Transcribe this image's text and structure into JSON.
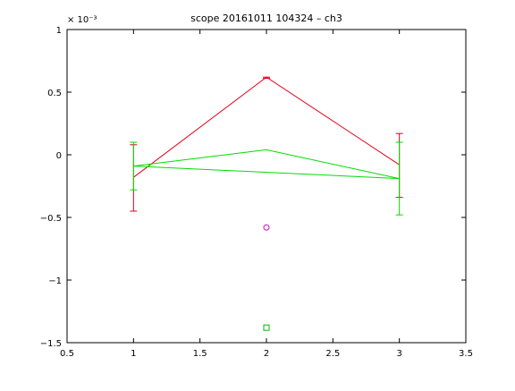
{
  "chart_data": {
    "type": "line",
    "title": "scope 20161011 104324 – ch3",
    "xlabel": "",
    "ylabel": "",
    "xlim": [
      0.5,
      3.5
    ],
    "ylim": [
      -1.5,
      1
    ],
    "y_scale_label": "× 10⁻³",
    "x_ticks": [
      0.5,
      1,
      1.5,
      2,
      2.5,
      3,
      3.5
    ],
    "x_tick_labels": [
      "0.5",
      "1",
      "1.5",
      "2",
      "2.5",
      "3",
      "3.5"
    ],
    "y_ticks": [
      -1.5,
      -1,
      -0.5,
      0,
      0.5,
      1
    ],
    "y_tick_labels": [
      "−1.5",
      "−1",
      "−0.5",
      "0",
      "0.5",
      "1"
    ],
    "grid": false,
    "series": [
      {
        "color": "#e3001b",
        "x": [
          1,
          2,
          3
        ],
        "y": [
          -0.18,
          0.62,
          -0.08
        ],
        "err_low": [
          -0.45,
          0.61,
          -0.34
        ],
        "err_high": [
          0.08,
          0.62,
          0.17
        ]
      },
      {
        "color": "#00dd00",
        "x": [
          1,
          3
        ],
        "y": [
          -0.09,
          -0.19
        ],
        "err_low": [
          -0.28,
          -0.48
        ],
        "err_high": [
          0.1,
          0.1
        ]
      },
      {
        "color": "#00dd00",
        "x": [
          1,
          2,
          3
        ],
        "y": [
          -0.09,
          0.04,
          -0.19
        ]
      }
    ],
    "markers": [
      {
        "shape": "circle",
        "color": "#cc00cc",
        "x": 2,
        "y": -0.58
      },
      {
        "shape": "square",
        "color": "#00bb00",
        "x": 2,
        "y": -1.38
      }
    ]
  }
}
